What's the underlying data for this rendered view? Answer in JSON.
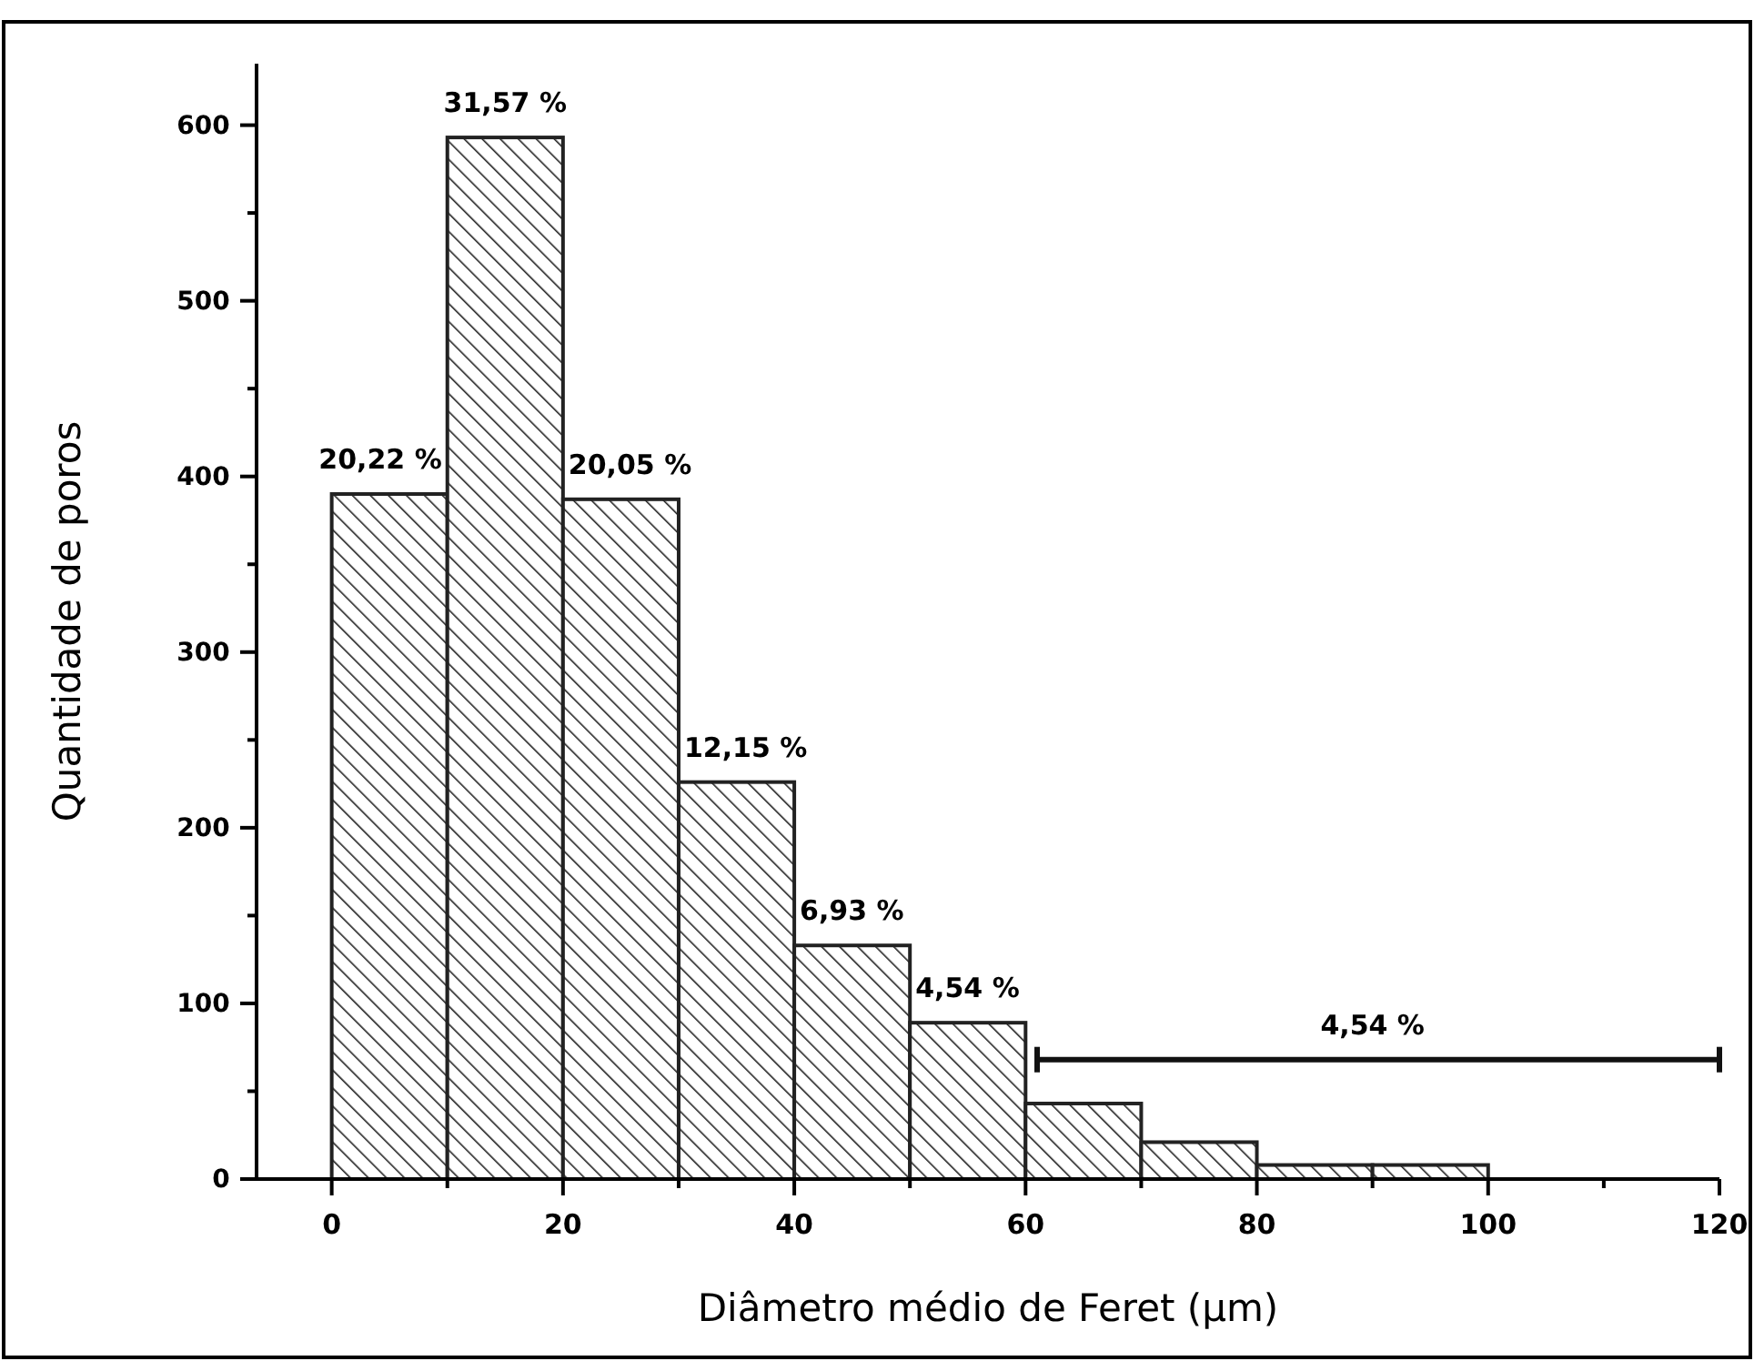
{
  "chart_data": {
    "type": "histogram",
    "xlabel": "Diâmetro médio de Feret (µm)",
    "ylabel": "Quantidade de poros",
    "bins": [
      0,
      10,
      20,
      30,
      40,
      50,
      60,
      70,
      80,
      90,
      100
    ],
    "values": [
      390,
      593,
      387,
      226,
      133,
      89,
      43,
      21,
      8,
      8
    ],
    "color": "#222222",
    "xlim": [
      -6.5,
      120
    ],
    "ylim": [
      0,
      635
    ],
    "xticks": [
      0,
      {
        "value": 10,
        "label": null
      },
      20,
      {
        "value": 30,
        "label": null
      },
      40,
      {
        "value": 50,
        "label": null
      },
      60,
      {
        "value": 70,
        "label": null
      },
      80,
      {
        "value": 90,
        "label": null
      },
      100,
      {
        "value": 110,
        "label": null
      },
      120
    ],
    "yticks": [
      0,
      {
        "value": 50,
        "label": null
      },
      100,
      {
        "value": 150,
        "label": null
      },
      200,
      {
        "value": 250,
        "label": null
      },
      300,
      {
        "value": 350,
        "label": null
      },
      400,
      {
        "value": 450,
        "label": null
      },
      500,
      {
        "value": 550,
        "label": null
      },
      600
    ],
    "grid": false,
    "annotations": [
      {
        "text": "20,22 %",
        "x": 5,
        "y": 390
      },
      {
        "text": "31,57 %",
        "x": 15,
        "y": 593
      },
      {
        "text": "20,05 %",
        "x": 25,
        "y": 387
      },
      {
        "text": "12,15 %",
        "x": 35,
        "y": 226
      },
      {
        "text": "6,93 %",
        "x": 45,
        "y": 133
      },
      {
        "text": "4,54 %",
        "x": 55,
        "y": 89
      },
      {
        "text": "4,54 %",
        "x": 90,
        "y": 68
      }
    ],
    "series": [
      {
        "type": "line",
        "x": [
          61,
          120
        ],
        "values": [
          68,
          68
        ],
        "color": "#111111"
      }
    ]
  }
}
